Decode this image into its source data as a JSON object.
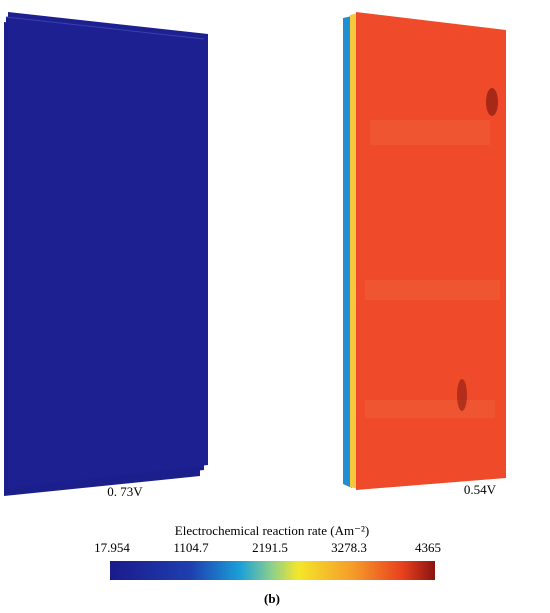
{
  "panels": [
    {
      "label": "0. 73V"
    },
    {
      "label": "0.54V"
    }
  ],
  "colorbar": {
    "title": "Electrochemical reaction rate (Am⁻²)",
    "ticks": [
      17.954,
      1104.7,
      2191.5,
      3278.3,
      4365
    ]
  },
  "caption": "(b)"
}
